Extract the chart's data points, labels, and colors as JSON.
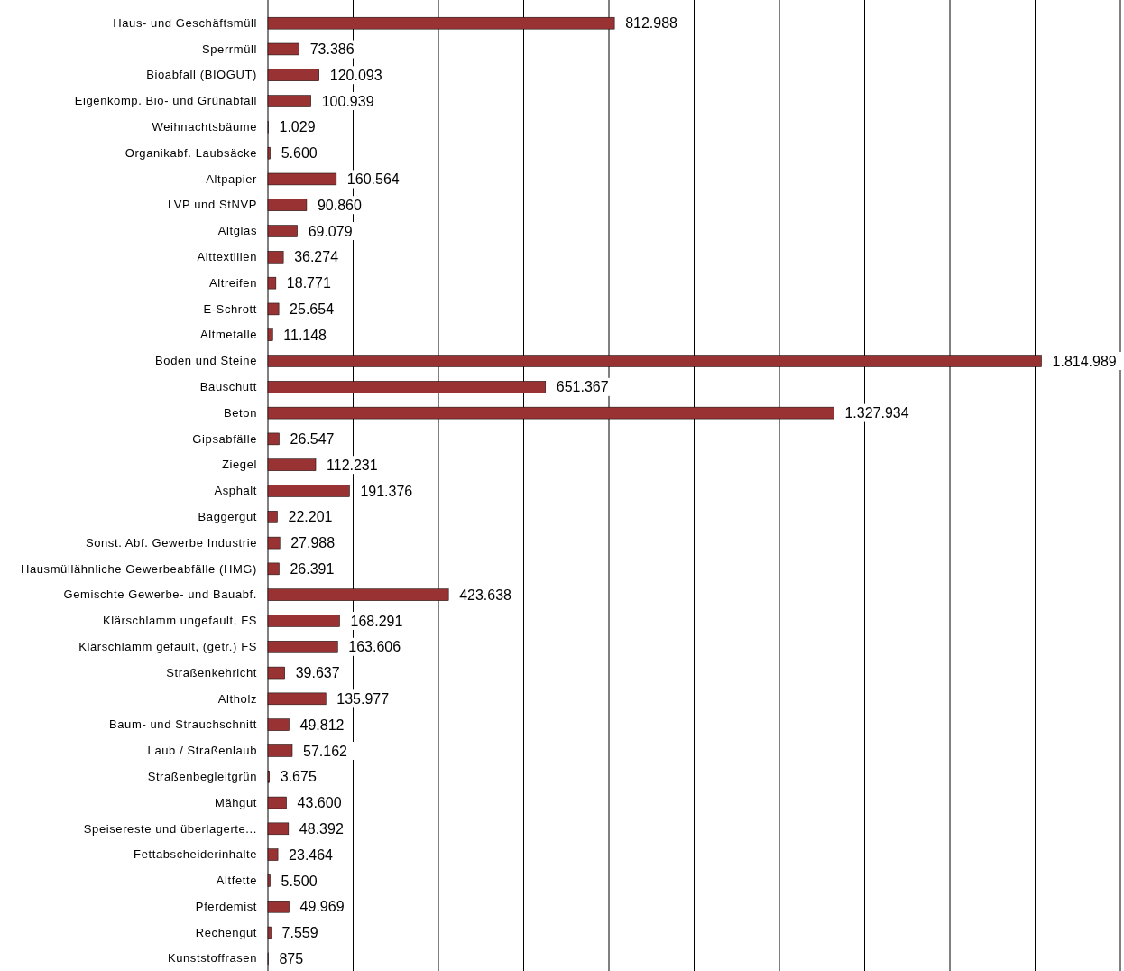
{
  "chart_data": {
    "type": "bar",
    "orientation": "horizontal",
    "color": "#993333",
    "categories": [
      "Haus- und Geschäftsmüll",
      "Sperrmüll",
      "Bioabfall (BIOGUT)",
      "Eigenkomp. Bio- und Grünabfall",
      "Weihnachtsbäume",
      "Organikabf. Laubsäcke",
      "Altpapier",
      "LVP und StNVP",
      "Altglas",
      "Alttextilien",
      "Altreifen",
      "E-Schrott",
      "Altmetalle",
      "Boden und Steine",
      "Bauschutt",
      "Beton",
      "Gipsabfälle",
      "Ziegel",
      "Asphalt",
      "Baggergut",
      "Sonst. Abf. Gewerbe Industrie",
      "Hausmüllähnliche Gewerbeabfälle (HMG)",
      "Gemischte Gewerbe- und Bauabf.",
      "Klärschlamm ungefault, FS",
      "Klärschlamm gefault, (getr.) FS",
      "Straßenkehricht",
      "Altholz",
      "Baum- und Strauchschnitt",
      "Laub / Straßenlaub",
      "Straßenbegleitgrün",
      "Mähgut",
      "Speisereste und überlagerte...",
      "Fettabscheiderinhalte",
      "Altfette",
      "Pferdemist",
      "Rechengut",
      "Kunststoffrasen"
    ],
    "values": [
      812988,
      73386,
      120093,
      100939,
      1029,
      5600,
      160564,
      90860,
      69079,
      36274,
      18771,
      25654,
      11148,
      1814989,
      651367,
      1327934,
      26547,
      112231,
      191376,
      22201,
      27988,
      26391,
      423638,
      168291,
      163606,
      39637,
      135977,
      49812,
      57162,
      3675,
      43600,
      48392,
      23464,
      5500,
      49969,
      7559,
      875
    ],
    "value_labels": [
      "812.988",
      "73.386",
      "120.093",
      "100.939",
      "1.029",
      "5.600",
      "160.564",
      "90.860",
      "69.079",
      "36.274",
      "18.771",
      "25.654",
      "11.148",
      "1.814.989",
      "651.367",
      "1.327.934",
      "26.547",
      "112.231",
      "191.376",
      "22.201",
      "27.988",
      "26.391",
      "423.638",
      "168.291",
      "163.606",
      "39.637",
      "135.977",
      "49.812",
      "57.162",
      "3.675",
      "43.600",
      "48.392",
      "23.464",
      "5.500",
      "49.969",
      "7.559",
      "875"
    ],
    "xlim": [
      0,
      2000000
    ],
    "xticks": [
      {
        "value": 0,
        "label": null
      },
      {
        "value": 200000,
        "label": null
      },
      {
        "value": 400000,
        "label": null
      },
      {
        "value": 600000,
        "label": null
      },
      {
        "value": 800000,
        "label": null
      },
      {
        "value": 1000000,
        "label": null
      },
      {
        "value": 1200000,
        "label": null
      },
      {
        "value": 1400000,
        "label": null
      },
      {
        "value": 1600000,
        "label": null
      },
      {
        "value": 1800000,
        "label": null
      },
      {
        "value": 2000000,
        "label": null
      }
    ],
    "grid": "x",
    "tick_labels": "y"
  }
}
